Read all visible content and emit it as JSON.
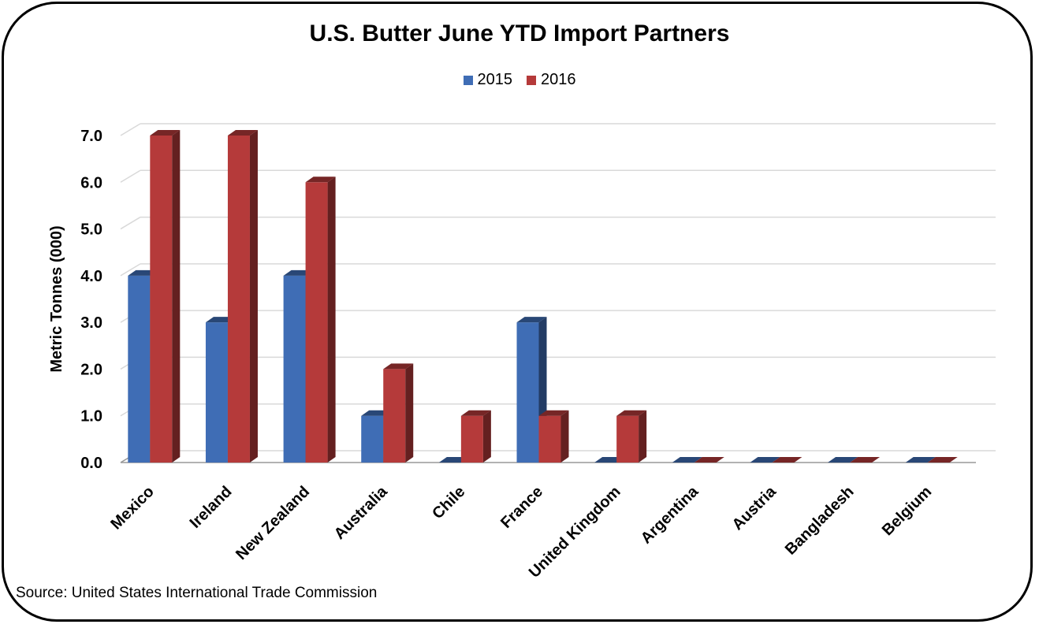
{
  "chart_data": {
    "type": "bar",
    "title": "U.S. Butter June YTD Import Partners",
    "ylabel": "Metric Tonnes (000)",
    "xlabel": "",
    "ylim": [
      0,
      7
    ],
    "yticks": [
      "0.0",
      "1.0",
      "2.0",
      "3.0",
      "4.0",
      "5.0",
      "6.0",
      "7.0"
    ],
    "grid": true,
    "legend_position": "top-center",
    "categories": [
      "Mexico",
      "Ireland",
      "New Zealand",
      "Australia",
      "Chile",
      "France",
      "United Kingdom",
      "Argentina",
      "Austria",
      "Bangladesh",
      "Belgium"
    ],
    "series": [
      {
        "name": "2015",
        "color": "#3f6db5",
        "values": [
          4,
          3,
          4,
          1,
          0,
          3,
          0,
          0,
          0,
          0,
          0
        ]
      },
      {
        "name": "2016",
        "color": "#b53a3a",
        "values": [
          7,
          7,
          6,
          2,
          1,
          1,
          1,
          0,
          0,
          0,
          0
        ]
      }
    ]
  },
  "source": "Source: United States International Trade Commission"
}
